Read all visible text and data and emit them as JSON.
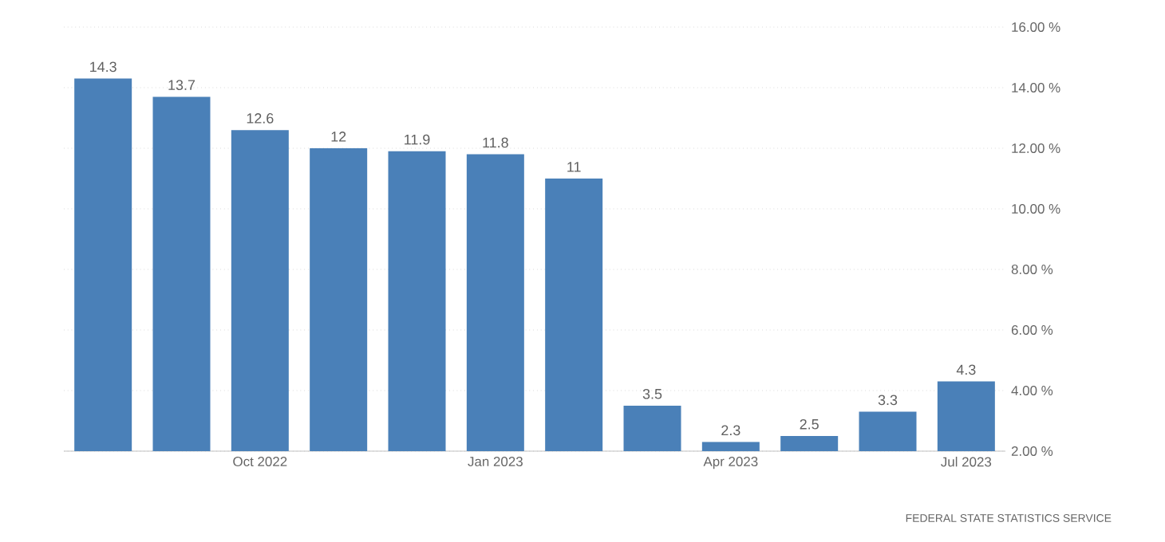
{
  "chart_data": {
    "type": "bar",
    "categories": [
      null,
      null,
      "Oct 2022",
      null,
      null,
      "Jan 2023",
      null,
      null,
      "Apr 2023",
      null,
      null,
      "Jul 2023"
    ],
    "values": [
      14.3,
      13.7,
      12.6,
      12,
      11.9,
      11.8,
      11,
      3.5,
      2.3,
      2.5,
      3.3,
      4.3
    ],
    "color": "#4a80b8",
    "ylim": [
      2,
      16
    ],
    "yticks": [
      {
        "value": 2,
        "label": "2.00 %"
      },
      {
        "value": 4,
        "label": "4.00 %"
      },
      {
        "value": 6,
        "label": "6.00 %"
      },
      {
        "value": 8,
        "label": "8.00 %"
      },
      {
        "value": 10,
        "label": "10.00 %"
      },
      {
        "value": 12,
        "label": "12.00 %"
      },
      {
        "value": 14,
        "label": "14.00 %"
      },
      {
        "value": 16,
        "label": "16.00 %"
      }
    ],
    "grid": "y",
    "data_labels": true,
    "annotations": [
      "FEDERAL STATE STATISTICS SERVICE"
    ]
  }
}
